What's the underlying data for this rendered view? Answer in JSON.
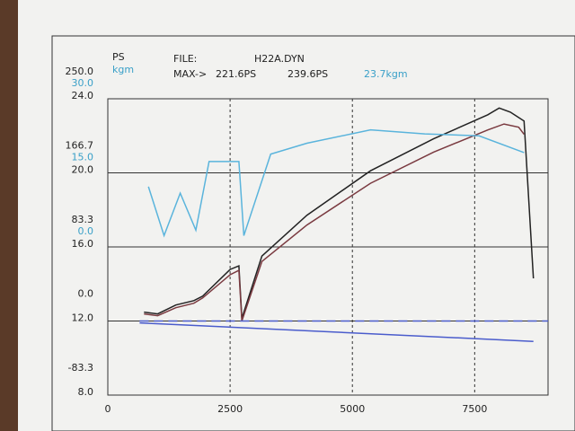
{
  "chart_data": {
    "type": "line",
    "y_label": "PS",
    "y2_label": "kgm",
    "file_label": "FILE:",
    "file_name": "H22A.DYN",
    "max_label": "MAX->",
    "max_values": [
      "221.6PS",
      "239.6PS",
      "23.7kgm"
    ],
    "max_colors": [
      "#222222",
      "#222222",
      "#3aa0c8"
    ],
    "xlim": [
      0,
      9000
    ],
    "xticks": [
      0,
      2500,
      5000,
      7500
    ],
    "ylim": [
      -83.3,
      250
    ],
    "yticks": [
      {
        "value": 250,
        "label": "250.0"
      },
      166.7,
      83.3,
      {
        "value": 0,
        "label": "0.0"
      },
      -83.3
    ],
    "y2lim": [
      -30,
      30
    ],
    "y2ticks": [
      {
        "value": 30,
        "label": "30.0"
      },
      {
        "value": 15,
        "label": "15.0"
      },
      {
        "value": 0,
        "label": "0.0"
      }
    ],
    "y3lim": [
      8,
      24
    ],
    "y3ticks": [
      {
        "value": 24,
        "label": "24.0"
      },
      {
        "value": 20,
        "label": "20.0"
      },
      {
        "value": 16,
        "label": "16.0"
      },
      {
        "value": 12,
        "label": "12.0"
      },
      {
        "value": 8,
        "label": "8.0"
      }
    ],
    "grid": true,
    "series": [
      {
        "color": "#222222",
        "axis": "y",
        "x": [
          740,
          1020,
          1390,
          1760,
          1940,
          2500,
          2680,
          2740,
          3150,
          4070,
          5370,
          6660,
          7770,
          8000,
          8230,
          8510,
          8700
        ],
        "values": [
          10,
          8,
          18,
          23,
          28,
          58,
          62,
          3,
          73,
          119,
          169,
          205,
          232,
          239.6,
          235,
          225,
          48
        ]
      },
      {
        "color": "#7a3a40",
        "axis": "y",
        "x": [
          740,
          1020,
          1390,
          1760,
          1940,
          2500,
          2680,
          2740,
          3150,
          4070,
          5370,
          6660,
          7770,
          8100,
          8400,
          8510
        ],
        "values": [
          8,
          6,
          15,
          20,
          26,
          52,
          57,
          0,
          67,
          108,
          155,
          190,
          215,
          221.6,
          218,
          210
        ]
      },
      {
        "color": "#5ab4dc",
        "axis": "y2",
        "x": [
          830,
          1150,
          1480,
          1800,
          2070,
          2680,
          2780,
          3330,
          4070,
          5370,
          6480,
          7590,
          8510
        ],
        "values": [
          12.2,
          2.3,
          10.9,
          3.4,
          17.3,
          17.3,
          2.3,
          18.8,
          21,
          23.7,
          22.9,
          22.5,
          19.1
        ]
      },
      {
        "color": "#4a5ccc",
        "axis": "y3",
        "dash": true,
        "x": [
          650,
          9000
        ],
        "values": [
          12,
          12
        ]
      },
      {
        "color": "#4a5ccc",
        "axis": "y3",
        "x": [
          650,
          8700
        ],
        "values": [
          11.9,
          10.9
        ]
      }
    ]
  }
}
